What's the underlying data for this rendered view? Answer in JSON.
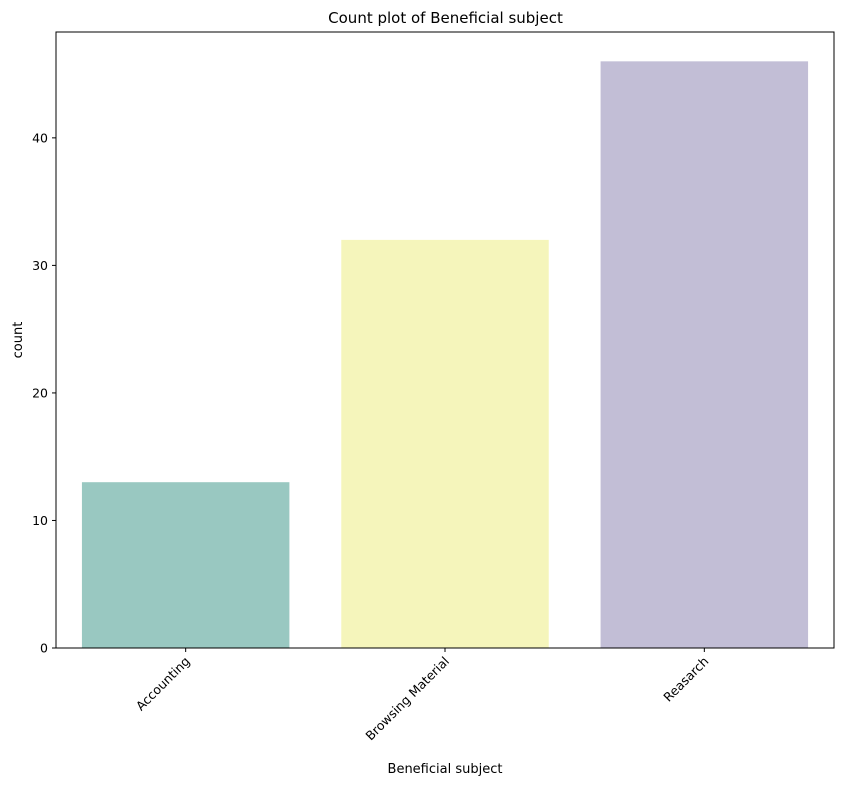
{
  "chart_data": {
    "type": "bar",
    "title": "Count plot of Beneficial subject",
    "xlabel": "Beneficial subject",
    "ylabel": "count",
    "categories": [
      "Accounting",
      "Browsing Material",
      "Reasarch"
    ],
    "values": [
      13,
      32,
      46
    ],
    "colors": [
      "#99c8c1",
      "#f5f5bb",
      "#c2bed6"
    ],
    "ylim": [
      0,
      48.3
    ],
    "yticks": [
      0,
      10,
      20,
      30,
      40
    ],
    "ytick_labels": [
      "0",
      "10",
      "20",
      "30",
      "40"
    ],
    "grid": false,
    "legend": "none",
    "xtick_rotation_deg": 45
  }
}
